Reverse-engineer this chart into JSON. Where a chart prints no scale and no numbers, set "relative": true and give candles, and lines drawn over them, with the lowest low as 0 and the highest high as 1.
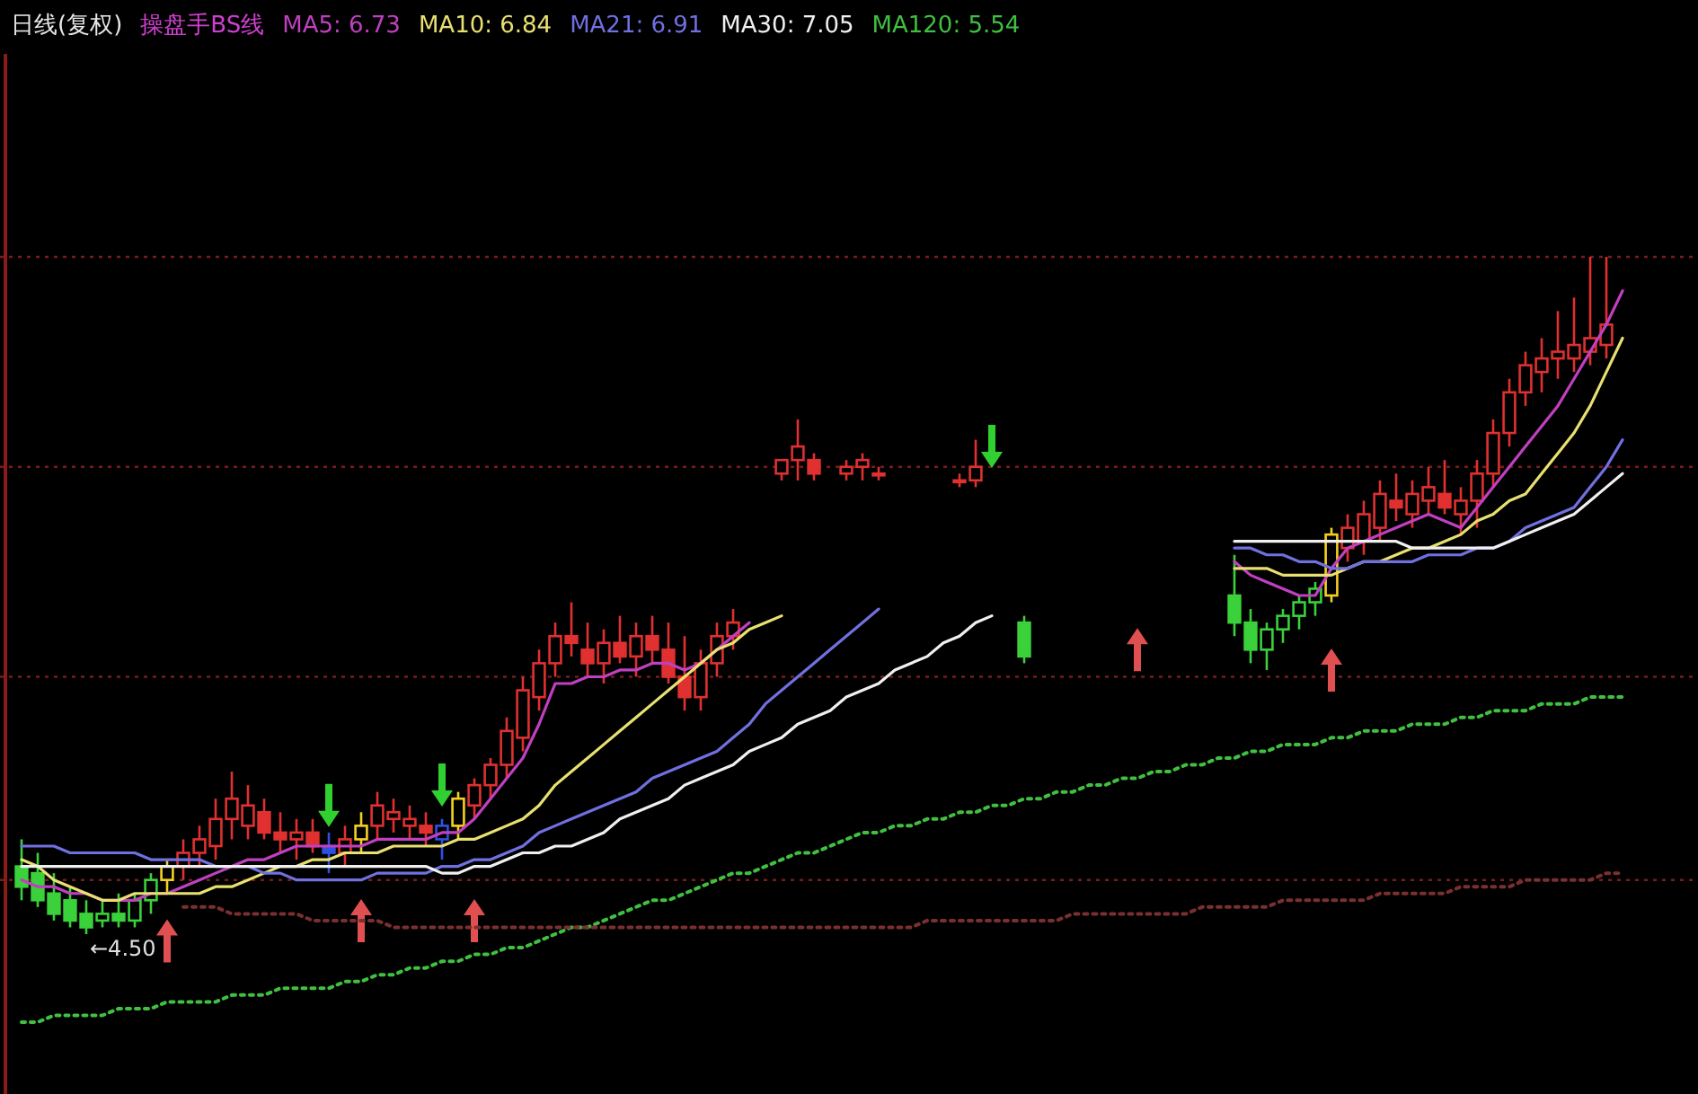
{
  "chart_data": {
    "type": "candlestick",
    "title": "日线(复权)",
    "subtitle": "操盘手BS线",
    "relative": true,
    "legend": "top left",
    "categories": [
      null,
      null,
      null,
      null,
      null,
      null,
      null,
      null,
      null,
      null,
      null,
      null,
      null,
      null,
      null,
      null,
      null,
      null,
      null,
      null,
      null,
      null,
      null,
      null,
      null,
      null,
      null,
      null,
      null,
      null,
      null,
      null,
      null,
      null,
      null,
      null,
      null,
      null,
      null,
      null,
      null,
      null,
      null,
      null,
      null,
      null,
      null,
      null,
      null,
      null,
      null,
      null,
      null,
      null,
      null,
      null,
      null,
      null,
      null,
      null,
      null,
      null,
      null,
      null,
      null,
      null,
      null,
      null,
      null,
      null,
      null,
      null,
      null,
      null,
      null,
      null,
      null,
      null,
      null,
      null,
      null,
      null,
      null,
      null,
      null,
      null,
      null,
      null,
      null,
      null,
      null,
      null,
      null,
      null,
      null,
      null,
      null,
      null,
      null,
      null
    ],
    "ohlc": [
      [
        0.1,
        0.14,
        0.05,
        0.07
      ],
      [
        0.09,
        0.12,
        0.04,
        0.05
      ],
      [
        0.06,
        0.09,
        0.02,
        0.03
      ],
      [
        0.05,
        0.07,
        0.01,
        0.02
      ],
      [
        0.03,
        0.05,
        0,
        0.01
      ],
      [
        0.02,
        0.05,
        0.01,
        0.03
      ],
      [
        0.03,
        0.06,
        0.01,
        0.02
      ],
      [
        0.02,
        0.06,
        0.01,
        0.05
      ],
      [
        0.05,
        0.09,
        0.03,
        0.08
      ],
      [
        0.08,
        0.11,
        0.06,
        0.1
      ],
      [
        0.1,
        0.14,
        0.08,
        0.12
      ],
      [
        0.12,
        0.16,
        0.1,
        0.14
      ],
      [
        0.13,
        0.2,
        0.11,
        0.17
      ],
      [
        0.17,
        0.24,
        0.14,
        0.2
      ],
      [
        0.16,
        0.22,
        0.14,
        0.19
      ],
      [
        0.18,
        0.2,
        0.14,
        0.15
      ],
      [
        0.15,
        0.18,
        0.12,
        0.14
      ],
      [
        0.14,
        0.17,
        0.11,
        0.15
      ],
      [
        0.15,
        0.17,
        0.12,
        0.13
      ],
      [
        0.13,
        0.15,
        0.09,
        0.12
      ],
      [
        0.12,
        0.16,
        0.1,
        0.14
      ],
      [
        0.14,
        0.18,
        0.12,
        0.16
      ],
      [
        0.16,
        0.21,
        0.14,
        0.19
      ],
      [
        0.17,
        0.2,
        0.15,
        0.18
      ],
      [
        0.16,
        0.19,
        0.14,
        0.17
      ],
      [
        0.16,
        0.18,
        0.13,
        0.15
      ],
      [
        0.14,
        0.17,
        0.11,
        0.16
      ],
      [
        0.16,
        0.21,
        0.14,
        0.2
      ],
      [
        0.19,
        0.23,
        0.17,
        0.22
      ],
      [
        0.22,
        0.26,
        0.2,
        0.25
      ],
      [
        0.25,
        0.32,
        0.23,
        0.3
      ],
      [
        0.29,
        0.38,
        0.27,
        0.36
      ],
      [
        0.35,
        0.42,
        0.33,
        0.4
      ],
      [
        0.4,
        0.46,
        0.38,
        0.44
      ],
      [
        0.44,
        0.49,
        0.41,
        0.43
      ],
      [
        0.42,
        0.46,
        0.38,
        0.4
      ],
      [
        0.4,
        0.45,
        0.37,
        0.43
      ],
      [
        0.43,
        0.47,
        0.4,
        0.41
      ],
      [
        0.41,
        0.46,
        0.38,
        0.44
      ],
      [
        0.44,
        0.47,
        0.4,
        0.42
      ],
      [
        0.42,
        0.46,
        0.37,
        0.38
      ],
      [
        0.38,
        0.44,
        0.33,
        0.35
      ],
      [
        0.35,
        0.42,
        0.33,
        0.4
      ],
      [
        0.4,
        0.46,
        0.38,
        0.44
      ],
      [
        0.44,
        0.48,
        0.42,
        0.46
      ],
      null,
      null,
      [
        0.68,
        0.7,
        0.67,
        0.7
      ],
      [
        0.7,
        0.76,
        0.67,
        0.72
      ],
      [
        0.7,
        0.71,
        0.67,
        0.68
      ],
      null,
      [
        0.68,
        0.7,
        0.67,
        0.69
      ],
      [
        0.69,
        0.71,
        0.67,
        0.7
      ],
      [
        0.68,
        0.69,
        0.67,
        0.68
      ],
      null,
      null,
      null,
      null,
      [
        0.67,
        0.68,
        0.66,
        0.67
      ],
      [
        0.67,
        0.73,
        0.66,
        0.69
      ],
      null,
      null,
      [
        0.46,
        0.47,
        0.4,
        0.41
      ],
      null,
      null,
      null,
      null,
      null,
      null,
      null,
      null,
      null,
      null,
      null,
      null,
      [
        0.5,
        0.56,
        0.44,
        0.46
      ],
      [
        0.46,
        0.48,
        0.4,
        0.42
      ],
      [
        0.42,
        0.46,
        0.39,
        0.45
      ],
      [
        0.45,
        0.48,
        0.43,
        0.47
      ],
      [
        0.47,
        0.5,
        0.45,
        0.49
      ],
      [
        0.49,
        0.52,
        0.47,
        0.51
      ],
      [
        0.5,
        0.6,
        0.49,
        0.59
      ],
      [
        0.57,
        0.62,
        0.55,
        0.6
      ],
      [
        0.58,
        0.64,
        0.56,
        0.62
      ],
      [
        0.6,
        0.67,
        0.58,
        0.65
      ],
      [
        0.64,
        0.68,
        0.61,
        0.63
      ],
      [
        0.62,
        0.67,
        0.6,
        0.65
      ],
      [
        0.64,
        0.69,
        0.62,
        0.66
      ],
      [
        0.65,
        0.7,
        0.62,
        0.63
      ],
      [
        0.62,
        0.66,
        0.59,
        0.64
      ],
      [
        0.64,
        0.7,
        0.6,
        0.68
      ],
      [
        0.68,
        0.76,
        0.66,
        0.74
      ],
      [
        0.74,
        0.82,
        0.72,
        0.8
      ],
      [
        0.8,
        0.86,
        0.78,
        0.84
      ],
      [
        0.83,
        0.88,
        0.8,
        0.85
      ],
      [
        0.85,
        0.92,
        0.82,
        0.86
      ],
      [
        0.85,
        0.94,
        0.83,
        0.87
      ],
      [
        0.86,
        1.0,
        0.84,
        0.88
      ],
      [
        0.87,
        1.0,
        0.85,
        0.9
      ],
      null
    ],
    "colors": [
      "#3ad13a",
      "#3ad13a",
      "#3ad13a",
      "#3ad13a",
      "#3ad13a",
      "#3ad13a",
      "#3ad13a",
      "#3ad13a",
      "#3ad13a",
      "#f5d020",
      "#e03030",
      "#e03030",
      "#e03030",
      "#e03030",
      "#e03030",
      "#e03030",
      "#e03030",
      "#e03030",
      "#e03030",
      "#3050e0",
      "#e03030",
      "#f5d020",
      "#e03030",
      "#e03030",
      "#e03030",
      "#e03030",
      "#3050e0",
      "#f5d020",
      "#e03030",
      "#e03030",
      "#e03030",
      "#e03030",
      "#e03030",
      "#e03030",
      "#e03030",
      "#e03030",
      "#e03030",
      "#e03030",
      "#e03030",
      "#e03030",
      "#e03030",
      "#e03030",
      "#e03030",
      "#e03030",
      "#e03030",
      null,
      null,
      "#e03030",
      "#e03030",
      "#e03030",
      null,
      "#e03030",
      "#e03030",
      "#e03030",
      null,
      null,
      null,
      null,
      "#e03030",
      "#e03030",
      null,
      null,
      "#3ad13a",
      null,
      null,
      null,
      null,
      null,
      null,
      null,
      null,
      null,
      null,
      null,
      null,
      "#3ad13a",
      "#3ad13a",
      "#3ad13a",
      "#3ad13a",
      "#3ad13a",
      "#3ad13a",
      "#f5d020",
      "#e03030",
      "#e03030",
      "#e03030",
      "#e03030",
      "#e03030",
      "#e03030",
      "#e03030",
      "#e03030",
      "#e03030",
      "#e03030",
      "#e03030",
      "#e03030",
      "#e03030",
      "#e03030",
      "#e03030",
      "#e03030",
      "#e03030",
      null
    ],
    "series": [
      {
        "name": "MA5: 6.73",
        "type": "line",
        "color": "#c040c0",
        "values": [
          0.08,
          0.07,
          0.07,
          0.06,
          0.06,
          0.05,
          0.05,
          0.05,
          0.06,
          0.06,
          0.07,
          0.08,
          0.09,
          0.1,
          0.11,
          0.11,
          0.12,
          0.13,
          0.13,
          0.13,
          0.13,
          0.13,
          0.14,
          0.14,
          0.14,
          0.14,
          0.15,
          0.15,
          0.17,
          0.2,
          0.23,
          0.26,
          0.31,
          0.37,
          0.37,
          0.38,
          0.38,
          0.39,
          0.39,
          0.4,
          0.4,
          0.39,
          0.4,
          0.42,
          0.44,
          0.46,
          null,
          null,
          null,
          null,
          null,
          null,
          null,
          null,
          null,
          null,
          null,
          null,
          null,
          null,
          null,
          null,
          null,
          null,
          null,
          null,
          null,
          null,
          null,
          null,
          null,
          null,
          null,
          null,
          null,
          0.55,
          0.53,
          0.52,
          0.51,
          0.5,
          0.5,
          0.54,
          0.57,
          0.58,
          0.59,
          0.6,
          0.61,
          0.62,
          0.61,
          0.6,
          0.63,
          0.66,
          0.69,
          0.72,
          0.75,
          0.78,
          0.82,
          0.86,
          0.9,
          0.95
        ]
      },
      {
        "name": "MA10: 6.84",
        "type": "line",
        "color": "#e8e070",
        "values": [
          0.11,
          0.1,
          0.08,
          0.07,
          0.06,
          0.05,
          0.05,
          0.06,
          0.06,
          0.06,
          0.06,
          0.06,
          0.07,
          0.07,
          0.08,
          0.09,
          0.1,
          0.1,
          0.11,
          0.11,
          0.12,
          0.12,
          0.12,
          0.13,
          0.13,
          0.13,
          0.13,
          0.14,
          0.14,
          0.15,
          0.16,
          0.17,
          0.19,
          0.22,
          0.24,
          0.26,
          0.28,
          0.3,
          0.32,
          0.34,
          0.36,
          0.38,
          0.4,
          0.42,
          0.43,
          0.45,
          0.46,
          0.47,
          null,
          null,
          null,
          null,
          null,
          null,
          null,
          null,
          null,
          null,
          null,
          null,
          null,
          null,
          null,
          null,
          null,
          null,
          null,
          null,
          null,
          null,
          null,
          null,
          null,
          null,
          null,
          0.54,
          0.54,
          0.54,
          0.53,
          0.53,
          0.53,
          0.53,
          0.54,
          0.55,
          0.55,
          0.56,
          0.57,
          0.57,
          0.58,
          0.59,
          0.61,
          0.62,
          0.64,
          0.65,
          0.68,
          0.71,
          0.74,
          0.78,
          0.83,
          0.88
        ]
      },
      {
        "name": "MA21: 6.91",
        "type": "line",
        "color": "#7070e0",
        "values": [
          0.13,
          0.13,
          0.13,
          0.12,
          0.12,
          0.12,
          0.12,
          0.12,
          0.11,
          0.11,
          0.11,
          0.11,
          0.1,
          0.1,
          0.1,
          0.09,
          0.09,
          0.08,
          0.08,
          0.08,
          0.08,
          0.08,
          0.09,
          0.09,
          0.09,
          0.09,
          0.1,
          0.1,
          0.11,
          0.11,
          0.12,
          0.13,
          0.15,
          0.16,
          0.17,
          0.18,
          0.19,
          0.2,
          0.21,
          0.23,
          0.24,
          0.25,
          0.26,
          0.27,
          0.29,
          0.31,
          0.34,
          0.36,
          0.38,
          0.4,
          0.42,
          0.44,
          0.46,
          0.48,
          null,
          null,
          null,
          null,
          null,
          null,
          null,
          null,
          null,
          null,
          null,
          null,
          null,
          null,
          null,
          null,
          null,
          null,
          null,
          null,
          null,
          0.57,
          0.57,
          0.56,
          0.56,
          0.55,
          0.55,
          0.54,
          0.54,
          0.55,
          0.55,
          0.55,
          0.55,
          0.56,
          0.56,
          0.56,
          0.57,
          0.57,
          0.58,
          0.6,
          0.61,
          0.62,
          0.63,
          0.66,
          0.69,
          0.73
        ]
      },
      {
        "name": "MA30: 7.05",
        "type": "line",
        "color": "#f0f0f0",
        "values": [
          0.1,
          0.1,
          0.1,
          0.1,
          0.1,
          0.1,
          0.1,
          0.1,
          0.1,
          0.1,
          0.1,
          0.1,
          0.1,
          0.1,
          0.1,
          0.1,
          0.1,
          0.1,
          0.1,
          0.1,
          0.1,
          0.1,
          0.1,
          0.1,
          0.1,
          0.1,
          0.09,
          0.09,
          0.1,
          0.1,
          0.11,
          0.12,
          0.12,
          0.13,
          0.13,
          0.14,
          0.15,
          0.17,
          0.18,
          0.19,
          0.2,
          0.22,
          0.23,
          0.24,
          0.25,
          0.27,
          0.28,
          0.29,
          0.31,
          0.32,
          0.33,
          0.35,
          0.36,
          0.37,
          0.39,
          0.4,
          0.41,
          0.43,
          0.44,
          0.46,
          0.47,
          null,
          null,
          null,
          null,
          null,
          null,
          null,
          null,
          null,
          null,
          null,
          null,
          null,
          null,
          0.58,
          0.58,
          0.58,
          0.58,
          0.58,
          0.58,
          0.58,
          0.58,
          0.58,
          0.58,
          0.58,
          0.57,
          0.57,
          0.57,
          0.57,
          0.57,
          0.57,
          0.58,
          0.59,
          0.6,
          0.61,
          0.62,
          0.64,
          0.66,
          0.68
        ]
      },
      {
        "name": "MA120: 5.54",
        "type": "line",
        "color": "#40c040",
        "line_style": "dotted",
        "values": [
          -0.13,
          -0.13,
          -0.12,
          -0.12,
          -0.12,
          -0.12,
          -0.11,
          -0.11,
          -0.11,
          -0.1,
          -0.1,
          -0.1,
          -0.1,
          -0.09,
          -0.09,
          -0.09,
          -0.08,
          -0.08,
          -0.08,
          -0.08,
          -0.07,
          -0.07,
          -0.06,
          -0.06,
          -0.05,
          -0.05,
          -0.04,
          -0.04,
          -0.03,
          -0.03,
          -0.02,
          -0.02,
          -0.01,
          0,
          0.01,
          0.01,
          0.02,
          0.03,
          0.04,
          0.05,
          0.05,
          0.06,
          0.07,
          0.08,
          0.09,
          0.09,
          0.1,
          0.11,
          0.12,
          0.12,
          0.13,
          0.14,
          0.15,
          0.15,
          0.16,
          0.16,
          0.17,
          0.17,
          0.18,
          0.18,
          0.19,
          0.19,
          0.2,
          0.2,
          0.21,
          0.21,
          0.22,
          0.22,
          0.23,
          0.23,
          0.24,
          0.24,
          0.25,
          0.25,
          0.26,
          0.26,
          0.27,
          0.27,
          0.28,
          0.28,
          0.28,
          0.29,
          0.29,
          0.3,
          0.3,
          0.3,
          0.31,
          0.31,
          0.31,
          0.32,
          0.32,
          0.33,
          0.33,
          0.33,
          0.34,
          0.34,
          0.34,
          0.35,
          0.35,
          0.35
        ]
      },
      {
        "type": "line",
        "color": "#7a3030",
        "line_style": "dotted",
        "values": [
          null,
          null,
          null,
          null,
          null,
          null,
          null,
          null,
          null,
          null,
          0.04,
          0.04,
          0.04,
          0.03,
          0.03,
          0.03,
          0.03,
          0.03,
          0.02,
          0.02,
          0.02,
          0.02,
          0.02,
          0.01,
          0.01,
          0.01,
          0.01,
          0.01,
          0.01,
          0.01,
          0.01,
          0.01,
          0.01,
          0.01,
          0.01,
          0.01,
          0.01,
          0.01,
          0.01,
          0.01,
          0.01,
          0.01,
          0.01,
          0.01,
          0.01,
          0.01,
          0.01,
          0.01,
          0.01,
          0.01,
          0.01,
          0.01,
          0.01,
          0.01,
          0.01,
          0.01,
          0.02,
          0.02,
          0.02,
          0.02,
          0.02,
          0.02,
          0.02,
          0.02,
          0.02,
          0.03,
          0.03,
          0.03,
          0.03,
          0.03,
          0.03,
          0.03,
          0.03,
          0.04,
          0.04,
          0.04,
          0.04,
          0.04,
          0.05,
          0.05,
          0.05,
          0.05,
          0.05,
          0.05,
          0.06,
          0.06,
          0.06,
          0.06,
          0.06,
          0.07,
          0.07,
          0.07,
          0.07,
          0.08,
          0.08,
          0.08,
          0.08,
          0.08,
          0.09,
          0.09
        ]
      },
      {
        "type": "scatter",
        "color": "#e05050",
        "values": [
          null,
          null,
          null,
          null,
          null,
          null,
          null,
          null,
          null,
          -0.01,
          null,
          null,
          null,
          null,
          null,
          null,
          null,
          null,
          null,
          null,
          null,
          0.02,
          null,
          null,
          null,
          null,
          null,
          null,
          0.02,
          null,
          null,
          null,
          null,
          null,
          null,
          null,
          null,
          null,
          null,
          null,
          null,
          null,
          null,
          null,
          null,
          null,
          null,
          null,
          null,
          null,
          null,
          null,
          null,
          null,
          null,
          null,
          null,
          null,
          null,
          null,
          null,
          null,
          null,
          null,
          null,
          null,
          null,
          null,
          null,
          0.42,
          null,
          null,
          null,
          null,
          null,
          null,
          null,
          null,
          null,
          null,
          null,
          0.39,
          null,
          null,
          null,
          null,
          null,
          null,
          null,
          null,
          null,
          null,
          null,
          null,
          null,
          null,
          null,
          null,
          null,
          null
        ]
      },
      {
        "type": "scatter",
        "color": "#30d030",
        "values": [
          null,
          null,
          null,
          null,
          null,
          null,
          null,
          null,
          null,
          null,
          null,
          null,
          null,
          null,
          null,
          null,
          null,
          null,
          null,
          0.19,
          null,
          null,
          null,
          null,
          null,
          null,
          0.22,
          null,
          null,
          null,
          null,
          null,
          null,
          null,
          null,
          null,
          null,
          null,
          null,
          null,
          null,
          null,
          null,
          null,
          null,
          null,
          null,
          null,
          null,
          null,
          null,
          null,
          null,
          null,
          null,
          null,
          null,
          null,
          null,
          null,
          0.72,
          null,
          null,
          null,
          null,
          null,
          null,
          null,
          null,
          null,
          null,
          null,
          null,
          null,
          null,
          null,
          null,
          null,
          null,
          null,
          null,
          null,
          null,
          null,
          null,
          null,
          null,
          null,
          null,
          null,
          null,
          null,
          null,
          null,
          null,
          null,
          null,
          null,
          null,
          null
        ]
      }
    ],
    "ref_lines": [
      {
        "axis": "y",
        "value": 1.0,
        "color": "#7a1c1c",
        "line_style": "dotted"
      },
      {
        "axis": "y",
        "value": 0.69,
        "color": "#7a1c1c",
        "line_style": "dotted"
      },
      {
        "axis": "y",
        "value": 0.38,
        "color": "#7a1c1c",
        "line_style": "dotted"
      },
      {
        "axis": "y",
        "value": 0.08,
        "color": "#7a1c1c",
        "line_style": "dotted"
      }
    ],
    "annotations": [
      "←4.50"
    ]
  }
}
